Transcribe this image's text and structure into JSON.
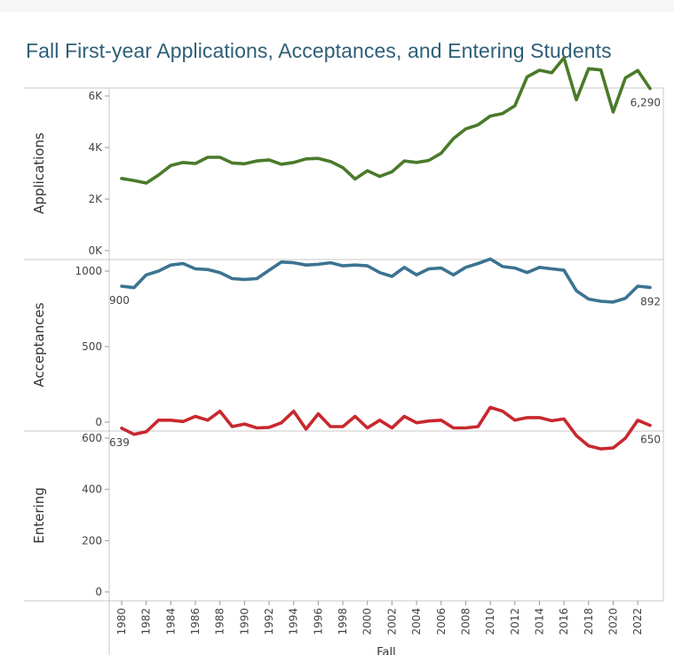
{
  "title": "Fall First-year Applications, Acceptances, and Entering Students",
  "colors": {
    "applications": "#4a7a2a",
    "acceptances": "#3c7391",
    "entering": "#c8282d",
    "title": "#2e5f78",
    "axis": "#c8c8c8",
    "text": "#444444"
  },
  "chart_data": {
    "type": "line",
    "x_label": "Fall",
    "x": [
      1980,
      1981,
      1982,
      1983,
      1984,
      1985,
      1986,
      1987,
      1988,
      1989,
      1990,
      1991,
      1992,
      1993,
      1994,
      1995,
      1996,
      1997,
      1998,
      1999,
      2000,
      2001,
      2002,
      2003,
      2004,
      2005,
      2006,
      2007,
      2008,
      2009,
      2010,
      2011,
      2012,
      2013,
      2014,
      2015,
      2016,
      2017,
      2018,
      2019,
      2020,
      2021,
      2022,
      2023
    ],
    "x_ticks": [
      "1980",
      "1982",
      "1984",
      "1986",
      "1988",
      "1990",
      "1992",
      "1994",
      "1996",
      "1998",
      "2000",
      "2002",
      "2004",
      "2006",
      "2008",
      "2010",
      "2012",
      "2014",
      "2016",
      "2018",
      "2020",
      "2022"
    ],
    "series": [
      {
        "name": "Applications",
        "color": "#4a7a2a",
        "ylim": [
          0,
          7600
        ],
        "y_ticks": [
          0,
          2000,
          4000,
          6000
        ],
        "y_tick_labels": [
          "0K",
          "2K",
          "4K",
          "6K"
        ],
        "end_label": "6,290",
        "values": [
          2800,
          2720,
          2620,
          2930,
          3300,
          3420,
          3380,
          3620,
          3620,
          3400,
          3370,
          3480,
          3520,
          3350,
          3420,
          3560,
          3580,
          3460,
          3220,
          2780,
          3100,
          2880,
          3060,
          3480,
          3420,
          3500,
          3780,
          4350,
          4720,
          4880,
          5220,
          5320,
          5620,
          6740,
          7000,
          6900,
          7480,
          5850,
          7060,
          7010,
          5380,
          6700,
          6990,
          6290
        ]
      },
      {
        "name": "Acceptances",
        "color": "#3c7391",
        "ylim": [
          0,
          1100
        ],
        "y_ticks": [
          0,
          500,
          1000
        ],
        "y_tick_labels": [
          "0",
          "500",
          "1000"
        ],
        "start_label": "900",
        "end_label": "892",
        "values": [
          900,
          890,
          975,
          1000,
          1040,
          1050,
          1015,
          1010,
          990,
          950,
          945,
          950,
          1005,
          1060,
          1055,
          1040,
          1045,
          1055,
          1035,
          1040,
          1035,
          990,
          965,
          1025,
          975,
          1015,
          1020,
          975,
          1025,
          1050,
          1080,
          1030,
          1020,
          990,
          1025,
          1015,
          1005,
          870,
          815,
          800,
          795,
          820,
          900,
          892
        ]
      },
      {
        "name": "Entering",
        "color": "#c8282d",
        "ylim": [
          0,
          720
        ],
        "y_ticks": [
          0,
          200,
          400,
          600
        ],
        "y_tick_labels": [
          "0",
          "200",
          "400",
          "600"
        ],
        "start_label": "639",
        "end_label": "650",
        "values": [
          639,
          615,
          625,
          670,
          670,
          665,
          685,
          670,
          705,
          645,
          655,
          640,
          642,
          660,
          705,
          635,
          695,
          645,
          645,
          685,
          640,
          670,
          640,
          685,
          660,
          667,
          670,
          640,
          640,
          645,
          720,
          705,
          670,
          680,
          680,
          668,
          675,
          610,
          570,
          558,
          562,
          600,
          670,
          650
        ]
      }
    ]
  }
}
